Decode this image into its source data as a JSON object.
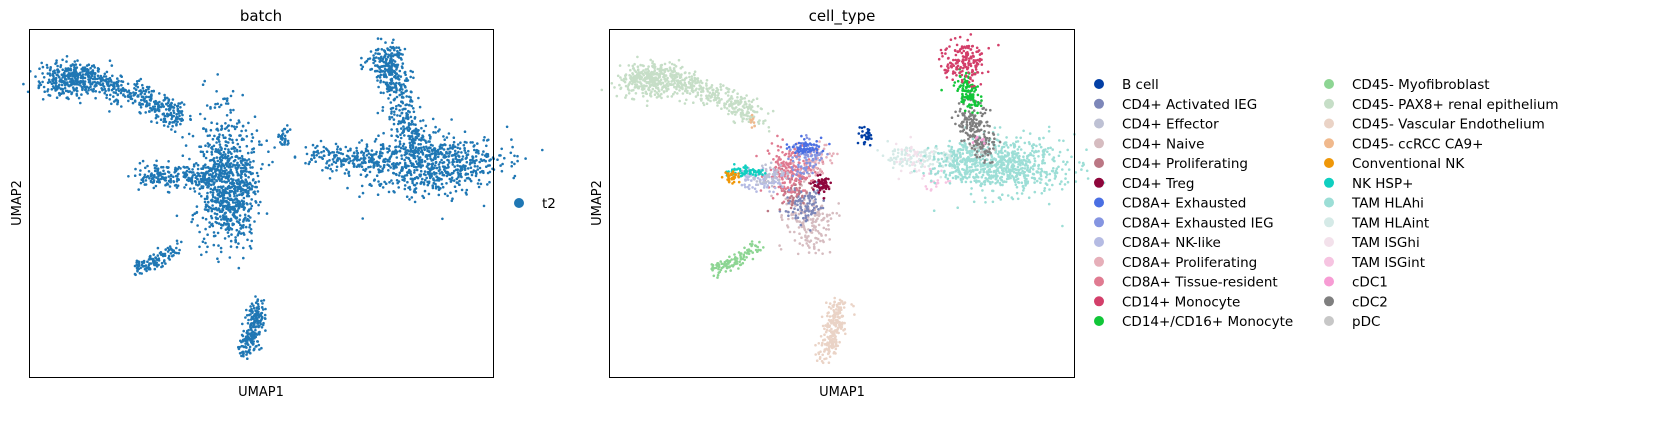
{
  "chart_data": [
    {
      "type": "scatter",
      "title": "batch",
      "xlabel": "UMAP1",
      "ylabel": "UMAP2",
      "xticks": [],
      "yticks": [],
      "legend_position": "right",
      "legend": [
        {
          "label": "t2",
          "color": "#1f77b4"
        }
      ],
      "clusters": [
        {
          "name": "top-left arc",
          "color": "#1f77b4"
        },
        {
          "name": "center",
          "color": "#1f77b4"
        },
        {
          "name": "right",
          "color": "#1f77b4"
        },
        {
          "name": "small center-right",
          "color": "#1f77b4"
        },
        {
          "name": "left-lower stripe",
          "color": "#1f77b4"
        },
        {
          "name": "bottom",
          "color": "#1f77b4"
        }
      ]
    },
    {
      "type": "scatter",
      "title": "cell_type",
      "xlabel": "UMAP1",
      "ylabel": "UMAP2",
      "xticks": [],
      "yticks": [],
      "legend_position": "right",
      "legend": [
        {
          "label": "B cell",
          "color": "#023fa5"
        },
        {
          "label": "CD4+ Activated IEG",
          "color": "#7d87b9"
        },
        {
          "label": "CD4+ Effector",
          "color": "#bec1d4"
        },
        {
          "label": "CD4+ Naive",
          "color": "#d6bcc0"
        },
        {
          "label": "CD4+ Proliferating",
          "color": "#bb7784"
        },
        {
          "label": "CD4+ Treg",
          "color": "#8e063b"
        },
        {
          "label": "CD8A+ Exhausted",
          "color": "#4a6fe3"
        },
        {
          "label": "CD8A+ Exhausted IEG",
          "color": "#8595e1"
        },
        {
          "label": "CD8A+ NK-like",
          "color": "#b5bbe3"
        },
        {
          "label": "CD8A+ Proliferating",
          "color": "#e6afb9"
        },
        {
          "label": "CD8A+ Tissue-resident",
          "color": "#e07b91"
        },
        {
          "label": "CD14+ Monocyte",
          "color": "#d33f6a"
        },
        {
          "label": "CD14+/CD16+ Monocyte",
          "color": "#11c638"
        },
        {
          "label": "CD45- Myofibroblast",
          "color": "#8dd593"
        },
        {
          "label": "CD45- PAX8+ renal epithelium",
          "color": "#c6dec7"
        },
        {
          "label": "CD45- Vascular Endothelium",
          "color": "#ead3c6"
        },
        {
          "label": "CD45- ccRCC CA9+",
          "color": "#f0b98d"
        },
        {
          "label": "Conventional NK",
          "color": "#ef9708"
        },
        {
          "label": "NK HSP+",
          "color": "#0fcfc0"
        },
        {
          "label": "TAM HLAhi",
          "color": "#9cded6"
        },
        {
          "label": "TAM HLAint",
          "color": "#d5eae7"
        },
        {
          "label": "TAM ISGhi",
          "color": "#f3e1eb"
        },
        {
          "label": "TAM ISGint",
          "color": "#f6c4e1"
        },
        {
          "label": "cDC1",
          "color": "#f79cd4"
        },
        {
          "label": "cDC2",
          "color": "#7f7f7f"
        },
        {
          "label": "pDC",
          "color": "#c7c7c7"
        }
      ]
    }
  ]
}
